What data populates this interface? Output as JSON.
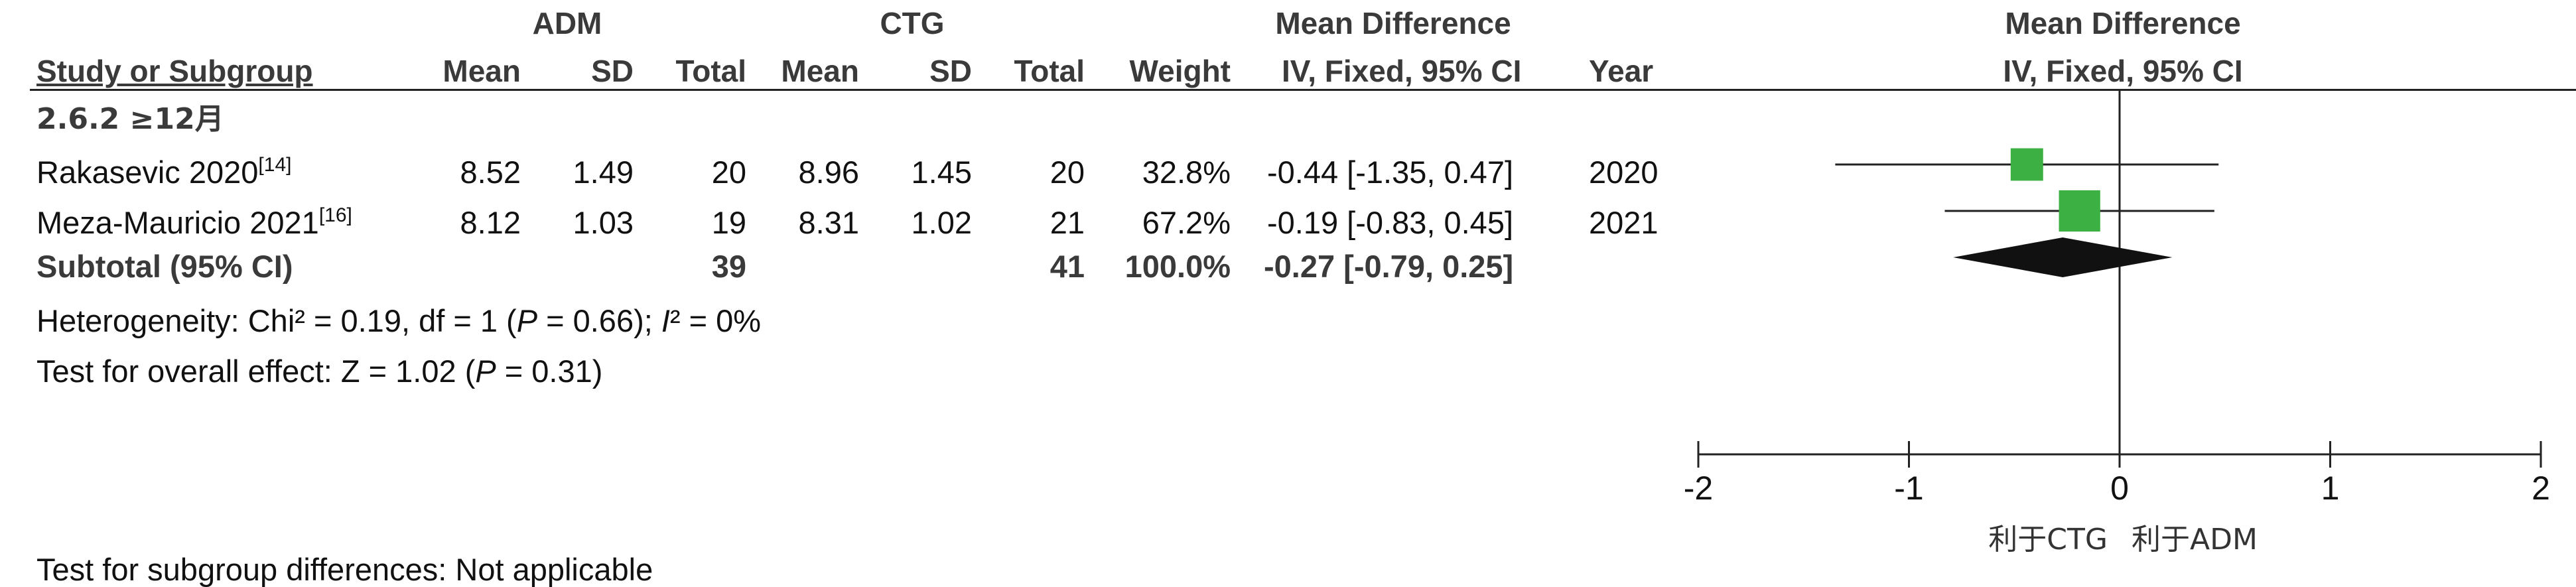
{
  "header": {
    "group_experimental": "ADM",
    "group_control": "CTG",
    "effect_title": "Mean Difference",
    "plot_title": "Mean Difference",
    "col_study": "Study or Subgroup",
    "col_mean1": "Mean",
    "col_sd1": "SD",
    "col_total1": "Total",
    "col_mean2": "Mean",
    "col_sd2": "SD",
    "col_total2": "Total",
    "col_weight": "Weight",
    "col_ci": "IV, Fixed, 95% CI",
    "col_year": "Year",
    "plot_ci": "IV, Fixed, 95% CI"
  },
  "subgroup_label": "2.6.2 ≥12月",
  "studies": [
    {
      "name": "Rakasevic 2020",
      "ref": "[14]",
      "mean1": "8.52",
      "sd1": "1.49",
      "total1": "20",
      "mean2": "8.96",
      "sd2": "1.45",
      "total2": "20",
      "weight": "32.8%",
      "ci": "-0.44 [-1.35, 0.47]",
      "year": "2020"
    },
    {
      "name": "Meza-Mauricio 2021",
      "ref": "[16]",
      "mean1": "8.12",
      "sd1": "1.03",
      "total1": "19",
      "mean2": "8.31",
      "sd2": "1.02",
      "total2": "21",
      "weight": "67.2%",
      "ci": "-0.19 [-0.83, 0.45]",
      "year": "2021"
    }
  ],
  "subtotal": {
    "label": "Subtotal (95% CI)",
    "total1": "39",
    "total2": "41",
    "weight": "100.0%",
    "ci": "-0.27 [-0.79, 0.25]"
  },
  "heterogeneity": {
    "prefix": "Heterogeneity: Chi² = 0.19, df = 1 (",
    "p": "P",
    "mid": " = 0.66); ",
    "i": "I",
    "suffix": "² = 0%"
  },
  "overall": {
    "prefix": "Test for overall effect: Z = 1.02 (",
    "p": "P",
    "suffix": " = 0.31)"
  },
  "subgroup_diff": "Test for subgroup differences: Not applicable",
  "favours_left": "利于CTG",
  "favours_right": "利于ADM",
  "colors": {
    "marker": "#3cb043",
    "diamond": "#111111",
    "text": "#3a3a3a"
  },
  "chart_data": {
    "type": "forest",
    "xlim": [
      -2,
      2
    ],
    "ticks": [
      -2,
      -1,
      0,
      1,
      2
    ],
    "tick_labels": [
      "-2",
      "-1",
      "0",
      "1",
      "2"
    ],
    "points": [
      {
        "study": "Rakasevic 2020",
        "md": -0.44,
        "lo": -1.35,
        "hi": 0.47,
        "weight": 32.8
      },
      {
        "study": "Meza-Mauricio 2021",
        "md": -0.19,
        "lo": -0.83,
        "hi": 0.45,
        "weight": 67.2
      }
    ],
    "pooled": {
      "md": -0.27,
      "lo": -0.79,
      "hi": 0.25
    }
  }
}
